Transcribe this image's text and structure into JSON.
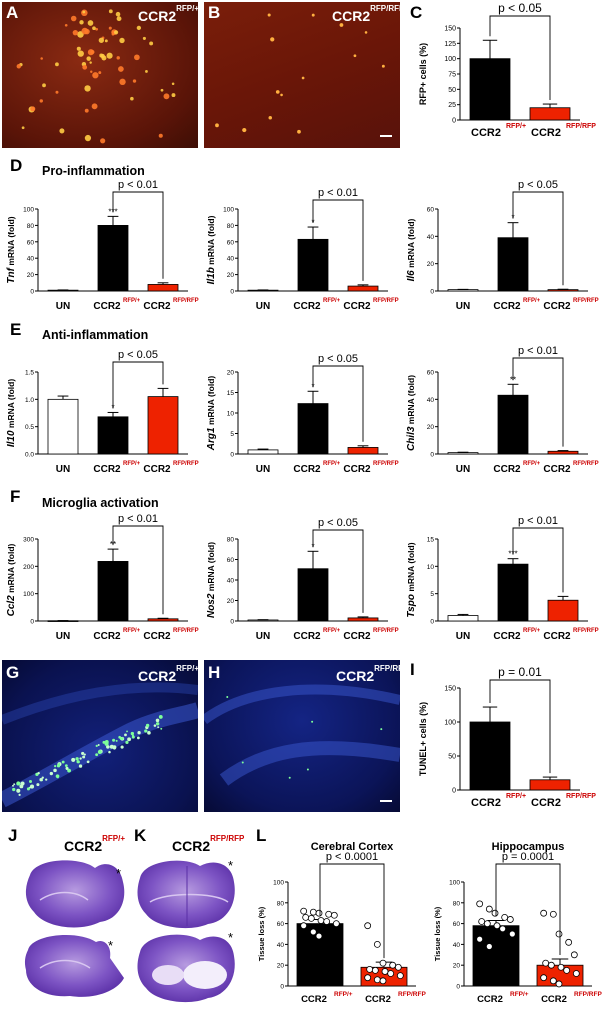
{
  "figure": {
    "panel_letters": [
      "A",
      "B",
      "C",
      "D",
      "E",
      "F",
      "G",
      "H",
      "I",
      "J",
      "K",
      "L"
    ],
    "section_titles": {
      "D": "Pro-inflammation",
      "E": "Anti-inflammation",
      "F": "Microglia activation"
    },
    "micrograph_labels": {
      "A": {
        "main": "CCR2",
        "sup": "RFP/+"
      },
      "B": {
        "main": "CCR2",
        "sup": "RFP/RFP"
      },
      "G": {
        "main": "CCR2",
        "sup": "RFP/+"
      },
      "H": {
        "main": "CCR2",
        "sup": "RFP/RFP"
      },
      "J": {
        "main": "CCR2",
        "sup": "RFP/+"
      },
      "K": {
        "main": "CCR2",
        "sup": "RFP/RFP"
      }
    },
    "asterisk": "*",
    "genotypes": {
      "un": "UN",
      "ccr2": "CCR2",
      "het": "RFP/+",
      "ko": "RFP/RFP"
    },
    "colors": {
      "black_bar": "#000000",
      "red_bar": "#ee2200",
      "open_bar": "#ffffff",
      "label_red": "#cc0000"
    }
  },
  "chart_data": [
    {
      "id": "C",
      "type": "bar",
      "ylabel": "RFP+ cells (%)",
      "categories": [
        "RFP/+",
        "RFP/RFP"
      ],
      "values": [
        100,
        20
      ],
      "errors": [
        30,
        6
      ],
      "ylim": [
        0,
        150
      ],
      "yticks": [
        "0",
        "25",
        "50",
        "75",
        "100",
        "125",
        "150"
      ],
      "pvalue": "p < 0.05",
      "sig": [
        "",
        ""
      ],
      "colors": [
        "#000000",
        "#ee2200"
      ]
    },
    {
      "id": "D1",
      "type": "bar",
      "ylabel": "mRNA (fold)",
      "gene": "Tnf",
      "categories": [
        "UN",
        "RFP/+",
        "RFP/RFP"
      ],
      "values": [
        1,
        80,
        8
      ],
      "errors": [
        0.3,
        11,
        2
      ],
      "ylim": [
        0,
        100
      ],
      "yticks": [
        "0",
        "20",
        "40",
        "60",
        "80",
        "100"
      ],
      "pvalue": "p < 0.01",
      "sig": [
        "",
        "***",
        ""
      ],
      "colors": [
        "#ffffff",
        "#000000",
        "#ee2200"
      ]
    },
    {
      "id": "D2",
      "type": "bar",
      "ylabel": "mRNA (fold)",
      "gene": "Il1b",
      "categories": [
        "UN",
        "RFP/+",
        "RFP/RFP"
      ],
      "values": [
        1,
        63,
        6
      ],
      "errors": [
        0.3,
        15,
        1.5
      ],
      "ylim": [
        0,
        100
      ],
      "yticks": [
        "0",
        "20",
        "40",
        "60",
        "80",
        "100"
      ],
      "pvalue": "p < 0.01",
      "sig": [
        "",
        "*",
        ""
      ],
      "colors": [
        "#ffffff",
        "#000000",
        "#ee2200"
      ]
    },
    {
      "id": "D3",
      "type": "bar",
      "ylabel": "mRNA (fold)",
      "gene": "Il6",
      "categories": [
        "UN",
        "RFP/+",
        "RFP/RFP"
      ],
      "values": [
        1,
        39,
        1
      ],
      "errors": [
        0.2,
        11,
        0.3
      ],
      "ylim": [
        0,
        60
      ],
      "yticks": [
        "0",
        "20",
        "40",
        "60"
      ],
      "pvalue": "p < 0.05",
      "sig": [
        "",
        "*",
        ""
      ],
      "colors": [
        "#ffffff",
        "#000000",
        "#ee2200"
      ]
    },
    {
      "id": "E1",
      "type": "bar",
      "ylabel": "mRNA (fold)",
      "gene": "Il10",
      "categories": [
        "UN",
        "RFP/+",
        "RFP/RFP"
      ],
      "values": [
        1.0,
        0.68,
        1.05
      ],
      "errors": [
        0.06,
        0.08,
        0.15
      ],
      "ylim": [
        0,
        1.5
      ],
      "yticks": [
        "0.0",
        "0.5",
        "1.0",
        "1.5"
      ],
      "pvalue": "p < 0.05",
      "sig": [
        "",
        "*",
        ""
      ],
      "colors": [
        "#ffffff",
        "#000000",
        "#ee2200"
      ]
    },
    {
      "id": "E2",
      "type": "bar",
      "ylabel": "mRNA (fold)",
      "gene": "Arg1",
      "categories": [
        "UN",
        "RFP/+",
        "RFP/RFP"
      ],
      "values": [
        1,
        12.3,
        1.6
      ],
      "errors": [
        0.2,
        3,
        0.4
      ],
      "ylim": [
        0,
        20
      ],
      "yticks": [
        "0",
        "5",
        "10",
        "15",
        "20"
      ],
      "pvalue": "p < 0.05",
      "sig": [
        "",
        "*",
        ""
      ],
      "colors": [
        "#ffffff",
        "#000000",
        "#ee2200"
      ]
    },
    {
      "id": "E3",
      "type": "bar",
      "ylabel": "mRNA (fold)",
      "gene": "Chil3",
      "categories": [
        "UN",
        "RFP/+",
        "RFP/RFP"
      ],
      "values": [
        1,
        43,
        2
      ],
      "errors": [
        0.3,
        8,
        0.5
      ],
      "ylim": [
        0,
        60
      ],
      "yticks": [
        "0",
        "20",
        "40",
        "60"
      ],
      "pvalue": "p < 0.01",
      "sig": [
        "",
        "**",
        ""
      ],
      "colors": [
        "#ffffff",
        "#000000",
        "#ee2200"
      ]
    },
    {
      "id": "F1",
      "type": "bar",
      "ylabel": "mRNA (fold)",
      "gene": "Ccl2",
      "categories": [
        "UN",
        "RFP/+",
        "RFP/RFP"
      ],
      "values": [
        1,
        218,
        8
      ],
      "errors": [
        0.5,
        45,
        2
      ],
      "ylim": [
        0,
        300
      ],
      "yticks": [
        "0",
        "100",
        "200",
        "300"
      ],
      "pvalue": "p < 0.01",
      "sig": [
        "",
        "**",
        ""
      ],
      "colors": [
        "#ffffff",
        "#000000",
        "#ee2200"
      ]
    },
    {
      "id": "F2",
      "type": "bar",
      "ylabel": "mRNA (fold)",
      "gene": "Nos2",
      "categories": [
        "UN",
        "RFP/+",
        "RFP/RFP"
      ],
      "values": [
        1,
        51,
        3
      ],
      "errors": [
        0.3,
        17,
        1
      ],
      "ylim": [
        0,
        80
      ],
      "yticks": [
        "0",
        "20",
        "40",
        "60",
        "80"
      ],
      "pvalue": "p < 0.05",
      "sig": [
        "",
        "*",
        ""
      ],
      "colors": [
        "#ffffff",
        "#000000",
        "#ee2200"
      ]
    },
    {
      "id": "F3",
      "type": "bar",
      "ylabel": "mRNA (fold)",
      "gene": "Tspo",
      "categories": [
        "UN",
        "RFP/+",
        "RFP/RFP"
      ],
      "values": [
        1,
        10.4,
        3.8
      ],
      "errors": [
        0.2,
        1,
        0.7
      ],
      "ylim": [
        0,
        15
      ],
      "yticks": [
        "0",
        "5",
        "10",
        "15"
      ],
      "pvalue": "p < 0.01",
      "sig": [
        "",
        "***",
        ""
      ],
      "colors": [
        "#ffffff",
        "#000000",
        "#ee2200"
      ]
    },
    {
      "id": "I",
      "type": "bar",
      "ylabel": "TUNEL+ cells (%)",
      "categories": [
        "RFP/+",
        "RFP/RFP"
      ],
      "values": [
        100,
        15
      ],
      "errors": [
        22,
        4
      ],
      "ylim": [
        0,
        150
      ],
      "yticks": [
        "0",
        "50",
        "100",
        "150"
      ],
      "pvalue": "p = 0.01",
      "sig": [
        "",
        ""
      ],
      "colors": [
        "#000000",
        "#ee2200"
      ]
    },
    {
      "id": "L1",
      "type": "bar",
      "title": "Cerebral Cortex",
      "ylabel": "Tissue loss (%)",
      "categories": [
        "RFP/+",
        "RFP/RFP"
      ],
      "values": [
        60,
        18
      ],
      "errors": [
        4,
        5
      ],
      "ylim": [
        0,
        100
      ],
      "yticks": [
        "0",
        "20",
        "40",
        "60",
        "80",
        "100"
      ],
      "pvalue": "p < 0.0001",
      "sig": [
        "",
        ""
      ],
      "colors": [
        "#000000",
        "#ee2200"
      ],
      "points": [
        [
          72,
          71,
          70,
          69,
          68,
          66,
          65,
          63,
          62,
          60,
          58,
          52,
          48
        ],
        [
          58,
          40,
          22,
          20,
          18,
          16,
          15,
          14,
          12,
          10,
          8,
          6,
          5
        ]
      ]
    },
    {
      "id": "L2",
      "type": "bar",
      "title": "Hippocampus",
      "ylabel": "Tissue loss (%)",
      "categories": [
        "RFP/+",
        "RFP/RFP"
      ],
      "values": [
        58,
        20
      ],
      "errors": [
        5,
        6
      ],
      "ylim": [
        0,
        100
      ],
      "yticks": [
        "0",
        "20",
        "40",
        "60",
        "80",
        "100"
      ],
      "pvalue": "p = 0.0001",
      "sig": [
        "",
        ""
      ],
      "colors": [
        "#000000",
        "#ee2200"
      ],
      "points": [
        [
          79,
          74,
          70,
          66,
          64,
          62,
          60,
          58,
          55,
          50,
          45,
          38
        ],
        [
          70,
          69,
          50,
          42,
          30,
          22,
          20,
          18,
          15,
          12,
          8,
          5,
          2
        ]
      ]
    }
  ]
}
